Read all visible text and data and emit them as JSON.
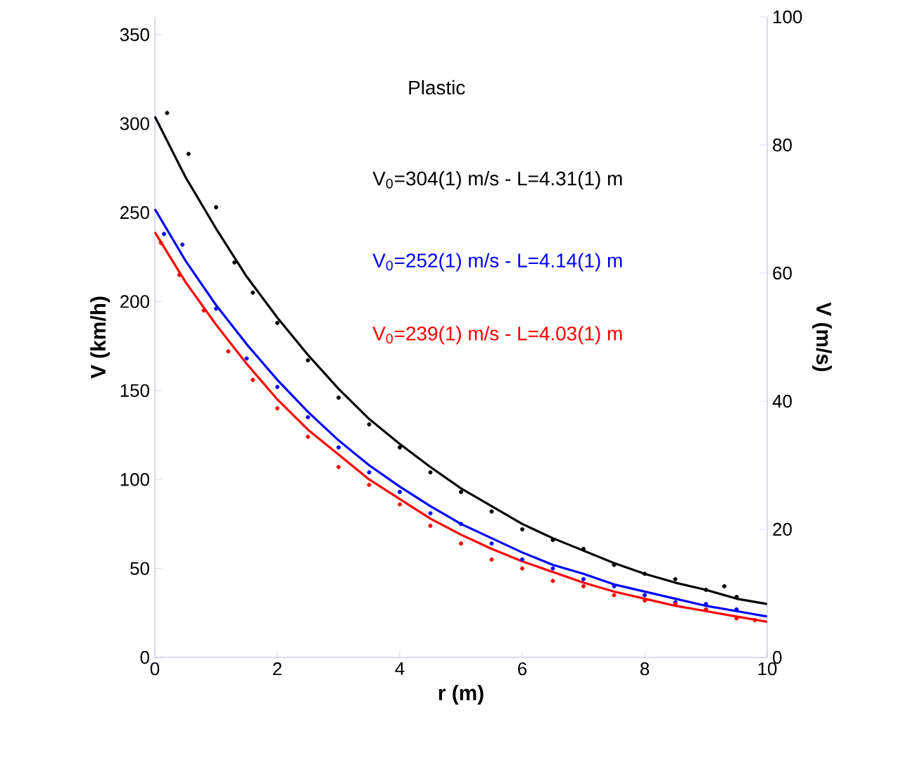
{
  "chart_data": {
    "type": "line",
    "xlabel": "r (m)",
    "ylabel": "V (km/h)",
    "y2label": "V (m/s)",
    "xlim": [
      0,
      10
    ],
    "xticks": [
      0,
      2,
      4,
      6,
      8,
      10
    ],
    "ylim": [
      0,
      360
    ],
    "yticks": [
      0,
      50,
      100,
      150,
      200,
      250,
      300,
      350
    ],
    "y2lim": [
      0,
      100
    ],
    "y2ticks": [
      0,
      20,
      40,
      60,
      80,
      100
    ],
    "grid": false,
    "annotations": [
      "Plastic",
      "V$_{0}$=304(1) m/s - L=4.31(1) m",
      "V$_{0}$=252(1) m/s - L=4.14(1) m",
      "V$_{0}$=239(1) m/s - L=4.03(1) m"
    ],
    "series": [
      {
        "color": "#000000",
        "x": [
          0,
          0.5,
          1,
          1.5,
          2,
          2.5,
          3,
          3.5,
          4,
          4.5,
          5,
          5.5,
          6,
          6.5,
          7,
          7.5,
          8,
          8.5,
          9,
          9.5,
          10
        ],
        "values": [
          304,
          270,
          241,
          214,
          191,
          170,
          151,
          134,
          120,
          107,
          95,
          85,
          75,
          67,
          60,
          53,
          47,
          42,
          38,
          33,
          30
        ]
      },
      {
        "color": "#0000ff",
        "x": [
          0,
          0.5,
          1,
          1.5,
          2,
          2.5,
          3,
          3.5,
          4,
          4.5,
          5,
          5.5,
          6,
          6.5,
          7,
          7.5,
          8,
          8.5,
          9,
          9.5,
          10
        ],
        "values": [
          252,
          223,
          198,
          176,
          156,
          138,
          122,
          108,
          96,
          85,
          75,
          67,
          59,
          52,
          47,
          41,
          37,
          33,
          29,
          26,
          23
        ]
      },
      {
        "color": "#ff0000",
        "x": [
          0,
          0.5,
          1,
          1.5,
          2,
          2.5,
          3,
          3.5,
          4,
          4.5,
          5,
          5.5,
          6,
          6.5,
          7,
          7.5,
          8,
          8.5,
          9,
          9.5,
          10
        ],
        "values": [
          239,
          211,
          187,
          165,
          145,
          128,
          114,
          100,
          89,
          78,
          69,
          61,
          54,
          48,
          42,
          37,
          33,
          29,
          26,
          23,
          20
        ]
      },
      {
        "type": "scatter",
        "marker": "circle",
        "color": "#000000",
        "x": [
          0.2,
          0.55,
          1.0,
          1.3,
          1.6,
          2.0,
          2.5,
          3.0,
          3.5,
          4.0,
          4.5,
          5.0,
          5.5,
          6.0,
          6.5,
          7.0,
          7.5,
          8.0,
          8.5,
          9.0,
          9.3,
          9.5
        ],
        "values": [
          306,
          283,
          253,
          222,
          205,
          188,
          167,
          146,
          131,
          118,
          104,
          93,
          82,
          72,
          66,
          61,
          52,
          47,
          44,
          38,
          40,
          34
        ]
      },
      {
        "type": "scatter",
        "marker": "circle",
        "color": "#0000ff",
        "x": [
          0.15,
          0.45,
          1.0,
          1.5,
          2.0,
          2.5,
          3.0,
          3.5,
          4.0,
          4.5,
          5.0,
          5.5,
          6.0,
          6.5,
          7.0,
          7.5,
          8.0,
          8.5,
          9.0,
          9.5
        ],
        "values": [
          238,
          232,
          196,
          168,
          152,
          135,
          118,
          104,
          93,
          81,
          75,
          64,
          55,
          50,
          44,
          40,
          35,
          31,
          30,
          27
        ]
      },
      {
        "type": "scatter",
        "marker": "circle",
        "color": "#ff0000",
        "x": [
          0.1,
          0.4,
          0.8,
          1.2,
          1.6,
          2.0,
          2.5,
          3.0,
          3.5,
          4.0,
          4.5,
          5.0,
          5.5,
          6.0,
          6.5,
          7.0,
          7.5,
          8.0,
          8.5,
          9.0,
          9.5,
          9.8
        ],
        "values": [
          233,
          215,
          195,
          172,
          156,
          140,
          124,
          107,
          97,
          86,
          74,
          64,
          55,
          50,
          43,
          40,
          35,
          32,
          30,
          27,
          22,
          21
        ]
      }
    ]
  }
}
